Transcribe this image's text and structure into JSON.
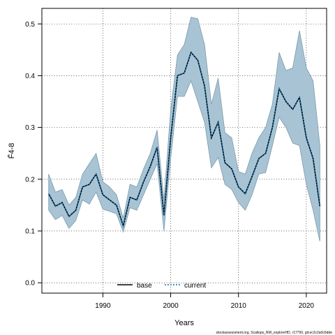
{
  "chart_data": {
    "type": "line",
    "xlabel": "Years",
    "ylabel": "F̄4-8",
    "xlim": [
      1981,
      2023
    ],
    "ylim": [
      -0.02,
      0.53
    ],
    "x_ticks": [
      1990,
      2000,
      2010,
      2020
    ],
    "y_ticks": [
      0.0,
      0.1,
      0.2,
      0.3,
      0.4,
      0.5
    ],
    "grid": true,
    "legend_position": "bottom",
    "x": [
      1982,
      1983,
      1984,
      1985,
      1986,
      1987,
      1988,
      1989,
      1990,
      1991,
      1992,
      1993,
      1994,
      1995,
      1996,
      1997,
      1998,
      1999,
      2000,
      2001,
      2002,
      2003,
      2004,
      2005,
      2006,
      2007,
      2008,
      2009,
      2010,
      2011,
      2012,
      2013,
      2014,
      2015,
      2016,
      2017,
      2018,
      2019,
      2020,
      2021,
      2022
    ],
    "band": {
      "upper": [
        0.21,
        0.175,
        0.18,
        0.15,
        0.165,
        0.21,
        0.23,
        0.25,
        0.195,
        0.185,
        0.17,
        0.125,
        0.19,
        0.185,
        0.22,
        0.25,
        0.295,
        0.16,
        0.335,
        0.44,
        0.46,
        0.513,
        0.51,
        0.46,
        0.345,
        0.395,
        0.29,
        0.28,
        0.215,
        0.21,
        0.25,
        0.28,
        0.3,
        0.345,
        0.445,
        0.41,
        0.415,
        0.487,
        0.415,
        0.39,
        0.265
      ],
      "lower": [
        0.14,
        0.122,
        0.13,
        0.105,
        0.12,
        0.16,
        0.152,
        0.175,
        0.142,
        0.138,
        0.133,
        0.098,
        0.145,
        0.14,
        0.17,
        0.2,
        0.23,
        0.1,
        0.24,
        0.36,
        0.36,
        0.39,
        0.35,
        0.31,
        0.222,
        0.242,
        0.19,
        0.18,
        0.155,
        0.14,
        0.17,
        0.21,
        0.213,
        0.265,
        0.32,
        0.3,
        0.27,
        0.265,
        0.19,
        0.14,
        0.08
      ]
    },
    "series": [
      {
        "name": "base",
        "style": "solid",
        "color": "#000000",
        "values": [
          0.172,
          0.148,
          0.155,
          0.128,
          0.14,
          0.185,
          0.19,
          0.21,
          0.17,
          0.16,
          0.15,
          0.11,
          0.165,
          0.16,
          0.195,
          0.225,
          0.262,
          0.13,
          0.28,
          0.4,
          0.405,
          0.445,
          0.43,
          0.38,
          0.28,
          0.31,
          0.232,
          0.22,
          0.185,
          0.172,
          0.205,
          0.24,
          0.25,
          0.3,
          0.375,
          0.35,
          0.335,
          0.358,
          0.28,
          0.24,
          0.148
        ]
      },
      {
        "name": "current",
        "style": "dotted",
        "color": "#1f78b4",
        "values": [
          0.172,
          0.148,
          0.155,
          0.128,
          0.14,
          0.185,
          0.19,
          0.21,
          0.17,
          0.16,
          0.15,
          0.11,
          0.165,
          0.16,
          0.195,
          0.225,
          0.262,
          0.13,
          0.28,
          0.4,
          0.405,
          0.445,
          0.43,
          0.38,
          0.28,
          0.31,
          0.232,
          0.22,
          0.185,
          0.172,
          0.205,
          0.24,
          0.25,
          0.3,
          0.375,
          0.35,
          0.335,
          0.358,
          0.28,
          0.24,
          0.148
        ]
      }
    ],
    "band_color": "#a8c4d4",
    "band_stroke": "#7a9aaa",
    "caption": "stockassessment.org, Scallops_NW_exploreHD, r17750, git:ec2c2a0c6dde",
    "legend": {
      "base_label": "base",
      "current_label": "current"
    }
  }
}
